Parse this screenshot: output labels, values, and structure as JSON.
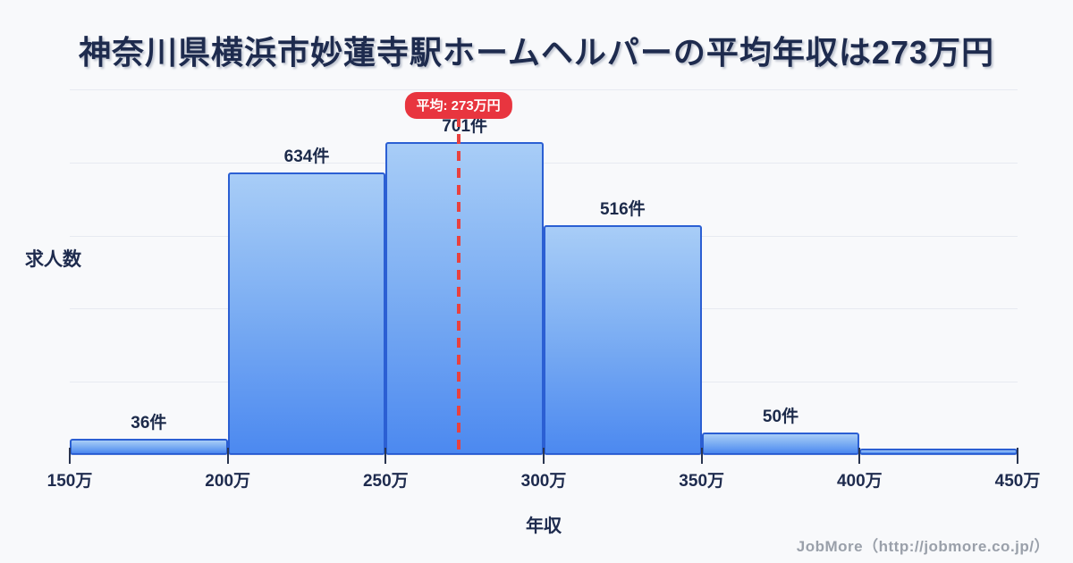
{
  "title": "神奈川県横浜市妙蓮寺駅ホームヘルパーの平均年収は273万円",
  "badge": {
    "label": "平均: 273万円"
  },
  "chart_data": {
    "type": "bar",
    "subtype": "histogram",
    "title": "神奈川県横浜市妙蓮寺駅ホームヘルパーの平均年収は273万円",
    "xlabel": "年収",
    "ylabel": "求人数",
    "x_tick_labels": [
      "150万",
      "200万",
      "250万",
      "300万",
      "350万",
      "400万",
      "450万"
    ],
    "bin_edges": [
      150,
      200,
      250,
      300,
      350,
      400,
      450
    ],
    "counts": [
      36,
      634,
      701,
      516,
      50,
      14
    ],
    "count_labels": [
      "36件",
      "634件",
      "701件",
      "516件",
      "50件",
      ""
    ],
    "mean": 273,
    "mean_label": "平均: 273万円",
    "ylim": [
      0,
      820
    ],
    "grid": true,
    "gridline_count": 6,
    "legend": false
  },
  "footer": {
    "credit": "JobMore（http://jobmore.co.jp/）"
  },
  "colors": {
    "background": "#f8f9fb",
    "bar_fill_top": "#a8cdf7",
    "bar_fill_bottom": "#4c89f0",
    "bar_border": "#2b5fd3",
    "gridline": "#e7eaf1",
    "mean_line": "#e8413f",
    "badge_bg": "#e8353f",
    "badge_text": "#ffffff",
    "text_dark": "#1e2b4e",
    "footer_text": "#9aa0aa"
  }
}
